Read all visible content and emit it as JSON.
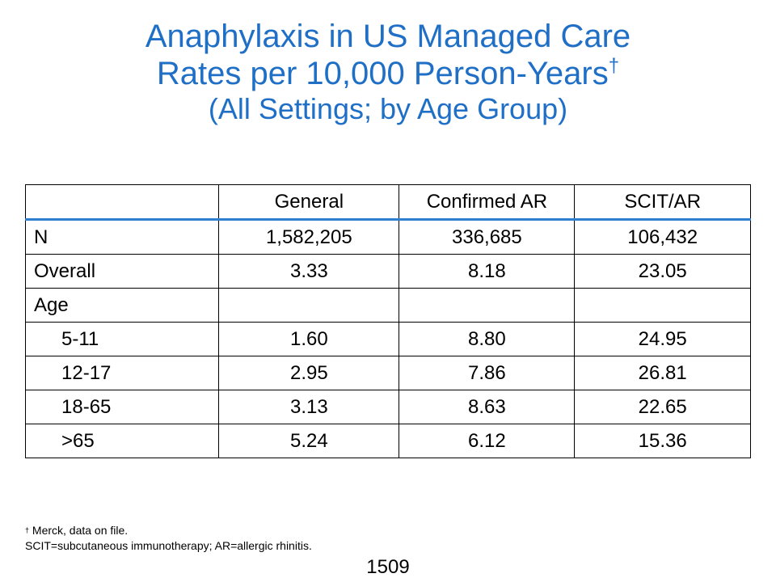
{
  "title": {
    "line1": "Anaphylaxis in US Managed Care",
    "line2": "Rates per 10,000 Person-Years",
    "line2_mark": "†",
    "line3": "(All Settings; by Age Group)"
  },
  "table": {
    "headers": [
      "",
      "General",
      "Confirmed AR",
      "SCIT/AR"
    ],
    "rows": [
      {
        "label": "N",
        "values": [
          "1,582,205",
          "336,685",
          "106,432"
        ]
      },
      {
        "label": "Overall",
        "values": [
          "3.33",
          "8.18",
          "23.05"
        ]
      },
      {
        "label": "Age",
        "values": [
          "",
          "",
          ""
        ]
      },
      {
        "label": "5-11",
        "values": [
          "1.60",
          "8.80",
          "24.95"
        ]
      },
      {
        "label": "12-17",
        "values": [
          "2.95",
          "7.86",
          "26.81"
        ]
      },
      {
        "label": "18-65",
        "values": [
          "3.13",
          "8.63",
          "22.65"
        ]
      },
      {
        "label": ">65",
        "values": [
          "5.24",
          "6.12",
          "15.36"
        ]
      }
    ]
  },
  "footnote": {
    "mark": "†",
    "line1": " Merck, data on file.",
    "line2": "SCIT=subcutaneous immunotherapy; AR=allergic rhinitis."
  },
  "page_number": "1509",
  "colors": {
    "title": "#1f6fc6",
    "header_rule": "#2f7fd0"
  }
}
